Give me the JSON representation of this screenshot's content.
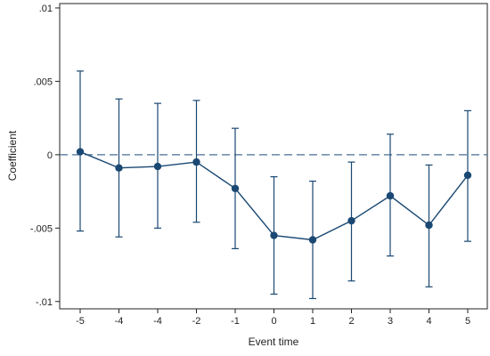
{
  "chart_data": {
    "type": "line",
    "title": "",
    "xlabel": "Event time",
    "ylabel": "Coefficient",
    "x_tick_labels": [
      "-5",
      "-4",
      "-4",
      "-2",
      "-1",
      "0",
      "1",
      "2",
      "3",
      "4",
      "5"
    ],
    "y_ticks": [
      0.01,
      0.005,
      0,
      -0.005,
      -0.01
    ],
    "y_tick_labels": [
      ".01",
      ".005",
      "0",
      "-.005",
      "-.01"
    ],
    "ylim": [
      -0.0105,
      0.0103
    ],
    "reference_line": {
      "y": 0,
      "style": "dashed"
    },
    "grid": false,
    "legend": "none",
    "series": [
      {
        "points": [
          {
            "x": "-5",
            "y": 0.0002,
            "ci_low": -0.0052,
            "ci_high": 0.0057
          },
          {
            "x": "-4",
            "y": -0.0009,
            "ci_low": -0.0056,
            "ci_high": 0.0038
          },
          {
            "x": "-4",
            "y": -0.0008,
            "ci_low": -0.005,
            "ci_high": 0.0035
          },
          {
            "x": "-2",
            "y": -0.0005,
            "ci_low": -0.0046,
            "ci_high": 0.0037
          },
          {
            "x": "-1",
            "y": -0.0023,
            "ci_low": -0.0064,
            "ci_high": 0.0018
          },
          {
            "x": "0",
            "y": -0.0055,
            "ci_low": -0.0095,
            "ci_high": -0.0015
          },
          {
            "x": "1",
            "y": -0.0058,
            "ci_low": -0.0098,
            "ci_high": -0.0018
          },
          {
            "x": "2",
            "y": -0.0045,
            "ci_low": -0.0086,
            "ci_high": -0.0005
          },
          {
            "x": "3",
            "y": -0.0028,
            "ci_low": -0.0069,
            "ci_high": 0.0014
          },
          {
            "x": "4",
            "y": -0.0048,
            "ci_low": -0.009,
            "ci_high": -0.0007
          },
          {
            "x": "5",
            "y": -0.0014,
            "ci_low": -0.0059,
            "ci_high": 0.003
          }
        ]
      }
    ]
  },
  "colors": {
    "series": "#1a4872",
    "reference_line": "#4a6e96",
    "axis": "#222222",
    "background": "#ffffff"
  }
}
